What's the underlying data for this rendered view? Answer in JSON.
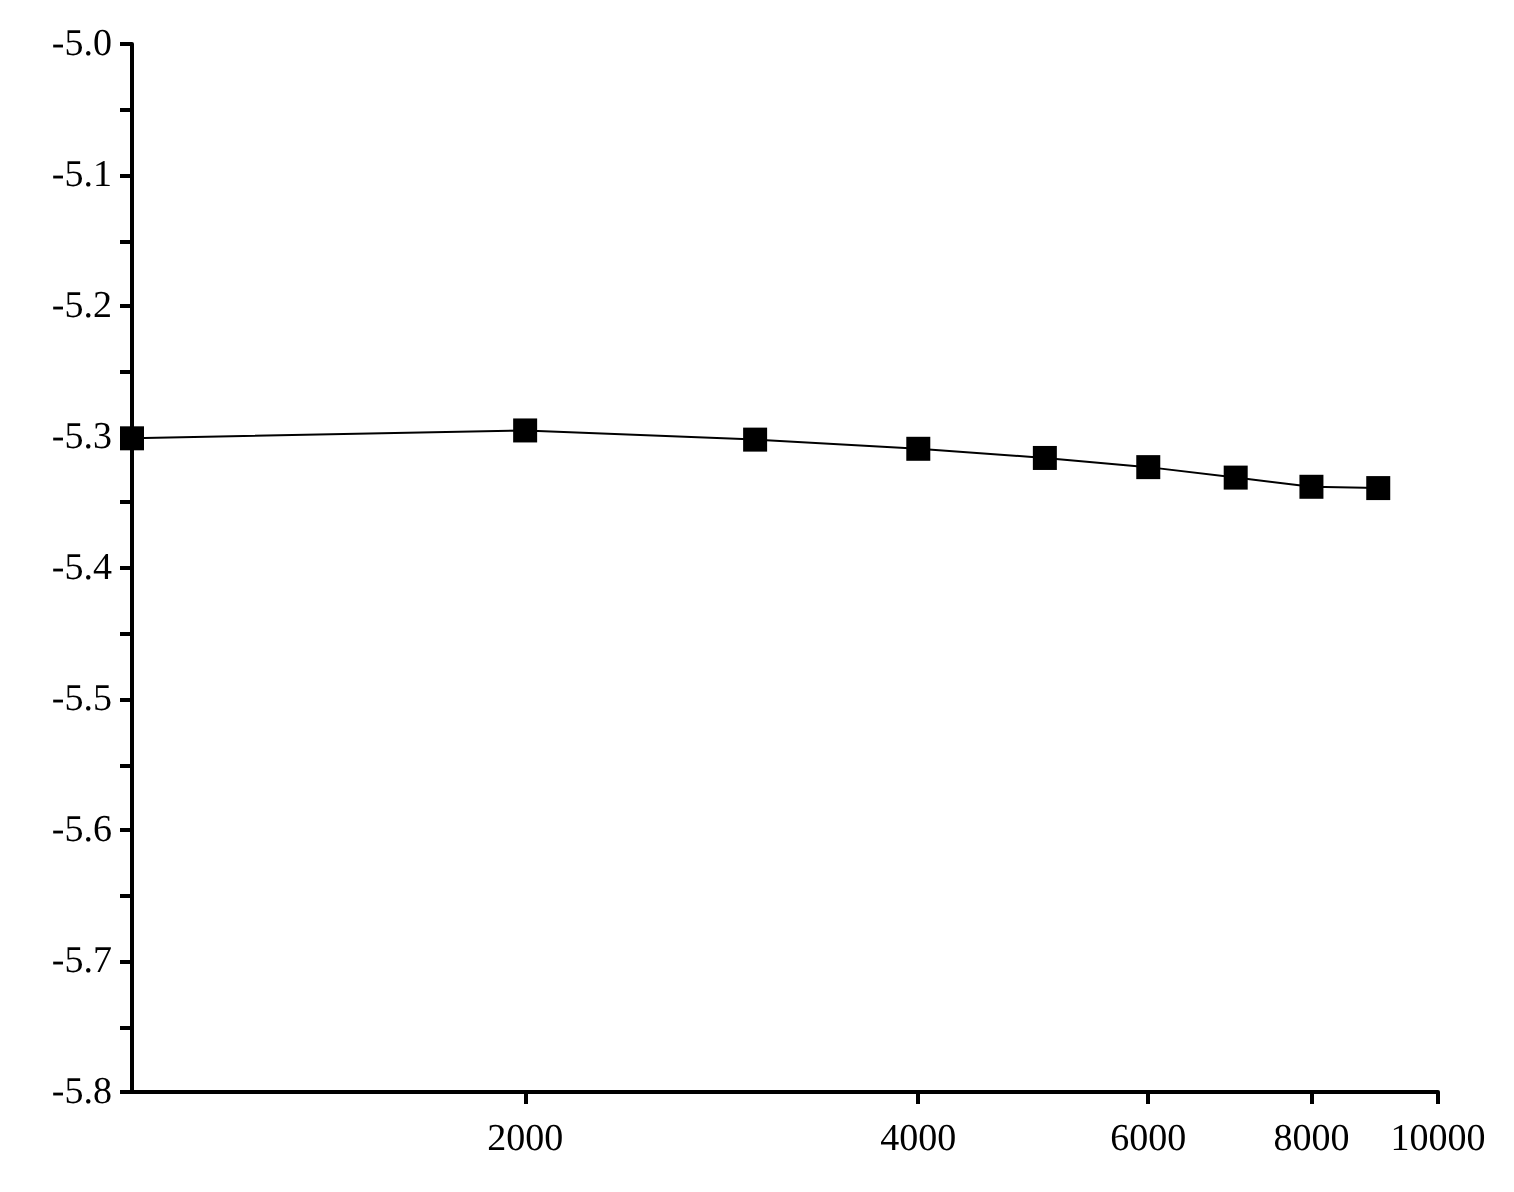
{
  "chart_data": {
    "type": "line",
    "x": [
      1000,
      2000,
      3000,
      4000,
      5000,
      6000,
      7000,
      8000,
      9000
    ],
    "series": [
      {
        "color": "#000000",
        "values": [
          -5.301,
          -5.295,
          -5.302,
          -5.309,
          -5.316,
          -5.323,
          -5.331,
          -5.338,
          -5.339
        ]
      }
    ],
    "log": "x",
    "xlim": [
      1000,
      10000
    ],
    "xticks": [
      2000,
      4000,
      6000,
      8000,
      10000
    ],
    "ylim": [
      -5.8,
      -5.0
    ],
    "yticks": [
      {
        "value": -5.8,
        "label": "-5.8"
      },
      {
        "value": -5.75,
        "label": null
      },
      {
        "value": -5.7,
        "label": "-5.7"
      },
      {
        "value": -5.65,
        "label": null
      },
      {
        "value": -5.6,
        "label": "-5.6"
      },
      {
        "value": -5.55,
        "label": null
      },
      {
        "value": -5.5,
        "label": "-5.5"
      },
      {
        "value": -5.45,
        "label": null
      },
      {
        "value": -5.4,
        "label": "-5.4"
      },
      {
        "value": -5.35,
        "label": null
      },
      {
        "value": -5.3,
        "label": "-5.3"
      },
      {
        "value": -5.25,
        "label": null
      },
      {
        "value": -5.2,
        "label": "-5.2"
      },
      {
        "value": -5.15,
        "label": null
      },
      {
        "value": -5.1,
        "label": "-5.1"
      },
      {
        "value": -5.05,
        "label": null
      },
      {
        "value": -5.0,
        "label": "-5.0"
      }
    ],
    "grid": false,
    "marker": "square",
    "line_style": "solid"
  }
}
